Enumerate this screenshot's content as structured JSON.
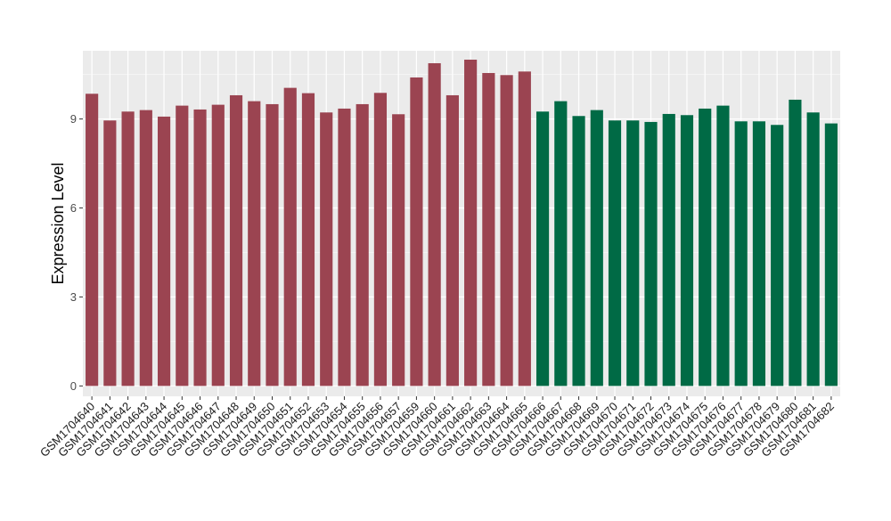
{
  "chart_data": {
    "type": "bar",
    "ylabel": "Expression Level",
    "xlabel": "",
    "ylim": [
      -0.35,
      11.3
    ],
    "yticks": [
      0,
      3,
      6,
      9
    ],
    "grid": true,
    "categories": [
      "GSM1704640",
      "GSM1704641",
      "GSM1704642",
      "GSM1704643",
      "GSM1704644",
      "GSM1704645",
      "GSM1704646",
      "GSM1704647",
      "GSM1704648",
      "GSM1704649",
      "GSM1704650",
      "GSM1704651",
      "GSM1704652",
      "GSM1704653",
      "GSM1704654",
      "GSM1704655",
      "GSM1704656",
      "GSM1704657",
      "GSM1704659",
      "GSM1704660",
      "GSM1704661",
      "GSM1704662",
      "GSM1704663",
      "GSM1704664",
      "GSM1704665",
      "GSM1704666",
      "GSM1704667",
      "GSM1704668",
      "GSM1704669",
      "GSM1704670",
      "GSM1704671",
      "GSM1704672",
      "GSM1704673",
      "GSM1704674",
      "GSM1704675",
      "GSM1704676",
      "GSM1704677",
      "GSM1704678",
      "GSM1704679",
      "GSM1704680",
      "GSM1704681",
      "GSM1704682"
    ],
    "values": [
      9.85,
      8.95,
      9.25,
      9.3,
      9.08,
      9.45,
      9.32,
      9.48,
      9.8,
      9.6,
      9.5,
      10.05,
      9.87,
      9.22,
      9.35,
      9.5,
      9.88,
      9.16,
      10.4,
      10.88,
      9.8,
      11.0,
      10.55,
      10.48,
      10.6,
      9.25,
      9.6,
      9.1,
      9.3,
      8.95,
      8.95,
      8.9,
      9.17,
      9.13,
      9.35,
      9.45,
      8.92,
      8.92,
      8.8,
      9.65,
      9.22,
      8.85
    ],
    "group_of_bar": [
      0,
      0,
      0,
      0,
      0,
      0,
      0,
      0,
      0,
      0,
      0,
      0,
      0,
      0,
      0,
      0,
      0,
      0,
      0,
      0,
      0,
      0,
      0,
      0,
      0,
      1,
      1,
      1,
      1,
      1,
      1,
      1,
      1,
      1,
      1,
      1,
      1,
      1,
      1,
      1,
      1,
      1
    ],
    "colors": [
      "#9b4451",
      "#006a45"
    ],
    "panel_background": "#ebebeb",
    "gridline_color": "#ffffff"
  }
}
